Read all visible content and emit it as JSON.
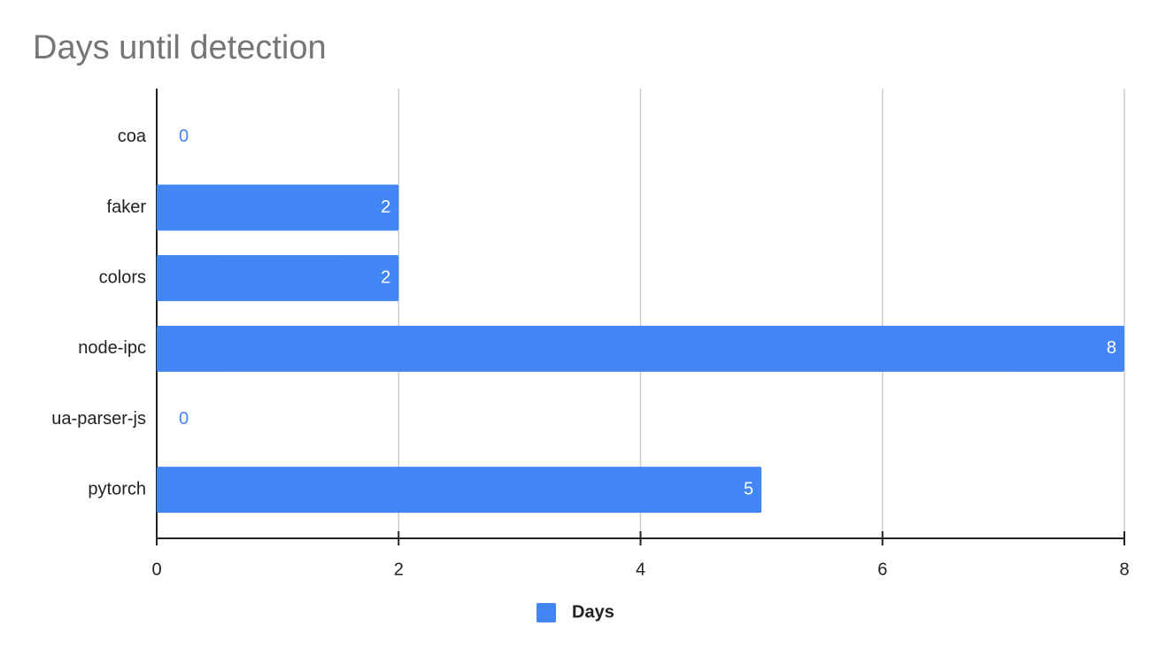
{
  "chart_data": {
    "type": "bar",
    "orientation": "horizontal",
    "title": "Days until detection",
    "categories": [
      "coa",
      "faker",
      "colors",
      "node-ipc",
      "ua-parser-js",
      "pytorch"
    ],
    "series": [
      {
        "name": "Days",
        "color": "#4285f4",
        "values": [
          0,
          2,
          2,
          8,
          0,
          5
        ]
      }
    ],
    "xlim": [
      0,
      8
    ],
    "xticks": [
      0,
      2,
      4,
      6,
      8
    ],
    "grid": true,
    "legend": "bottom"
  }
}
